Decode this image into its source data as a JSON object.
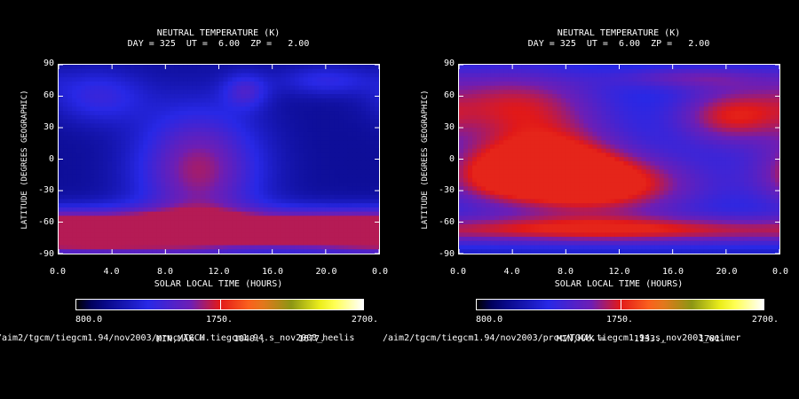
{
  "chart_data": [
    {
      "type": "heatmap",
      "title": "NEUTRAL TEMPERATURE (K)",
      "subtitle": "DAY = 325  UT =  6.00  ZP =   2.00",
      "xlabel": "SOLAR LOCAL TIME (HOURS)",
      "ylabel": "LATITUDE (DEGREES GEOGRAPHIC)",
      "x_ticks": [
        "0.0",
        "4.0",
        "8.0",
        "12.0",
        "16.0",
        "20.0",
        "0.0"
      ],
      "y_ticks": [
        "90",
        "60",
        "30",
        "0",
        "-30",
        "-60",
        "-90"
      ],
      "xlim": [
        0,
        24
      ],
      "ylim": [
        -90,
        90
      ],
      "colorbar": {
        "min_label": "800.0",
        "mid_label": "1750.",
        "max_label": "2700.",
        "range": [
          800,
          2700
        ]
      },
      "minmax_label": "MIN,MAX =",
      "min_value": "1040.,",
      "max_value": "1677.",
      "file_path": "/aim2/tgcm/tiegcm1.94/nov2003/proc/TGCM.tiegcm1.94.s_nov2003_heelis",
      "blobs": [
        {
          "x": 10.5,
          "y": -10,
          "sx": 3.2,
          "sy": 40,
          "a": 0.95
        },
        {
          "x": 12,
          "y": -68,
          "sx": 12,
          "sy": 14,
          "a": 0.9
        },
        {
          "x": 3.5,
          "y": -72,
          "sx": 5,
          "sy": 12,
          "a": 0.6
        },
        {
          "x": 21,
          "y": -68,
          "sx": 4,
          "sy": 10,
          "a": 0.5
        },
        {
          "x": 14,
          "y": 65,
          "sx": 1.2,
          "sy": 12,
          "a": 0.5
        },
        {
          "x": 3,
          "y": 60,
          "sx": 2.5,
          "sy": 18,
          "a": 0.45
        },
        {
          "x": 20,
          "y": 75,
          "sx": 2.5,
          "sy": 10,
          "a": 0.4
        }
      ]
    },
    {
      "type": "heatmap",
      "title": "NEUTRAL TEMPERATURE (K)",
      "subtitle": "DAY = 325  UT =  6.00  ZP =   2.00",
      "xlabel": "SOLAR LOCAL TIME (HOURS)",
      "ylabel": "LATITUDE (DEGREES GEOGRAPHIC)",
      "x_ticks": [
        "0.0",
        "4.0",
        "8.0",
        "12.0",
        "16.0",
        "20.0",
        "0.0"
      ],
      "y_ticks": [
        "90",
        "60",
        "30",
        "0",
        "-30",
        "-60",
        "-90"
      ],
      "xlim": [
        0,
        24
      ],
      "ylim": [
        -90,
        90
      ],
      "colorbar": {
        "min_label": "800.0",
        "mid_label": "1750.",
        "max_label": "2700.",
        "range": [
          800,
          2700
        ]
      },
      "minmax_label": "MIN,MAX =",
      "min_value": "1133.,",
      "max_value": "1781.",
      "file_path": "/aim2/tgcm/tiegcm1.94/nov2003/proc/TGCM.tiegcm1.94.s_nov2003_weimer",
      "blobs": [
        {
          "x": 11,
          "y": -25,
          "sx": 5.5,
          "sy": 22,
          "a": 1.0
        },
        {
          "x": 7,
          "y": 0,
          "sx": 4,
          "sy": 28,
          "a": 0.85
        },
        {
          "x": 4,
          "y": 55,
          "sx": 5,
          "sy": 25,
          "a": 0.8
        },
        {
          "x": 20,
          "y": 40,
          "sx": 3,
          "sy": 20,
          "a": 0.75
        },
        {
          "x": 12,
          "y": -68,
          "sx": 10,
          "sy": 10,
          "a": 0.8
        },
        {
          "x": 2,
          "y": -15,
          "sx": 3,
          "sy": 22,
          "a": 0.55
        },
        {
          "x": 17,
          "y": 78,
          "sx": 4,
          "sy": 8,
          "a": 0.5
        }
      ]
    }
  ]
}
